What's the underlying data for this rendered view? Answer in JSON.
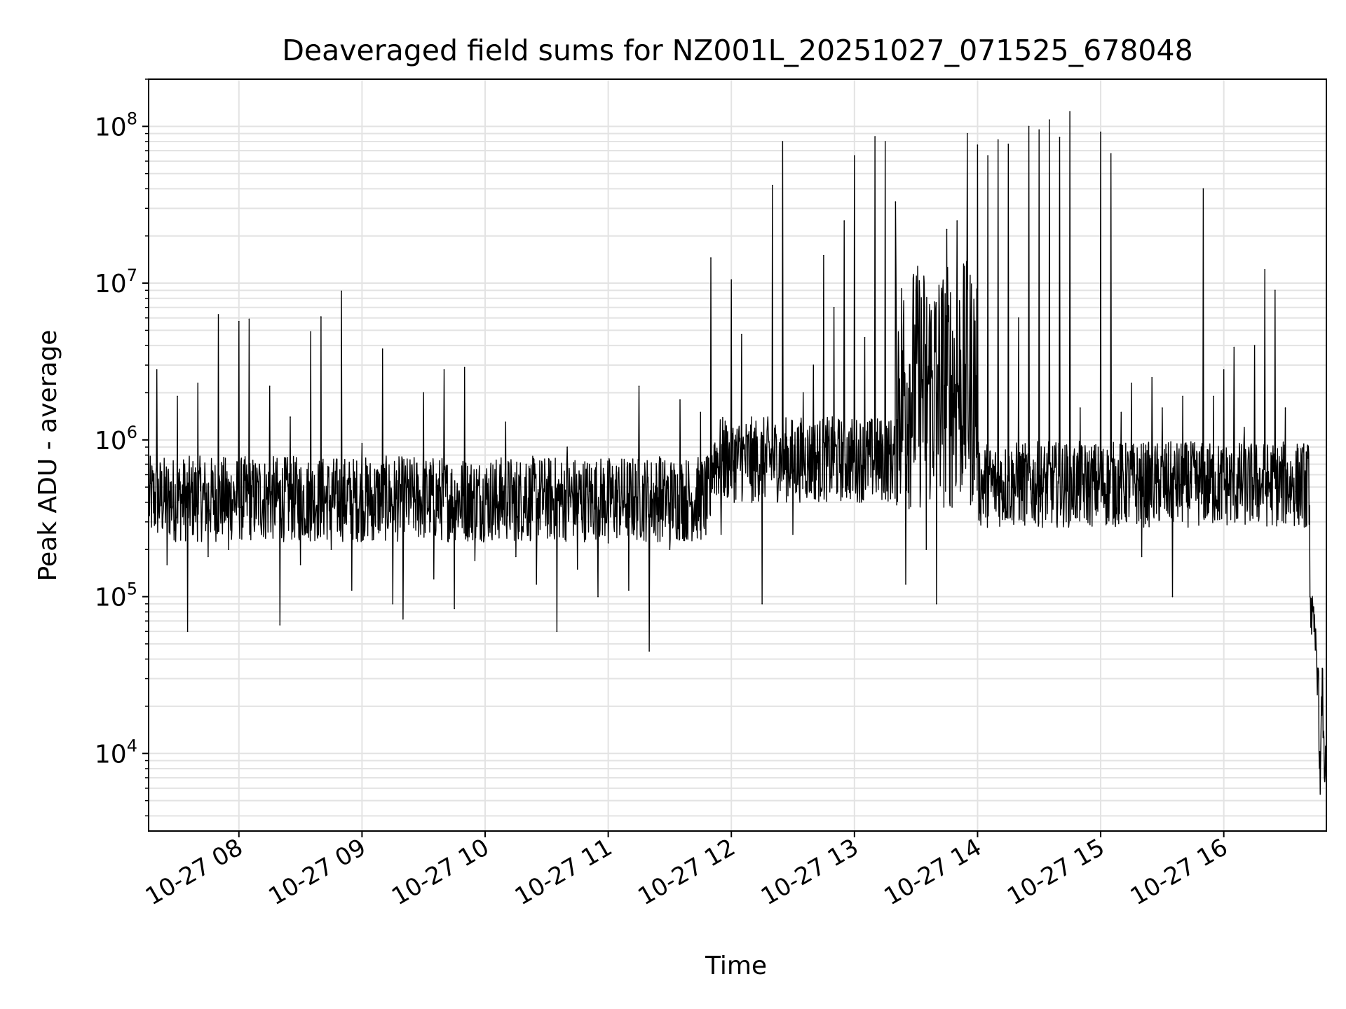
{
  "chart_data": {
    "type": "line",
    "title": "Deaveraged field sums for NZ001L_20251027_071525_678048",
    "xlabel": "Time",
    "ylabel": "Peak ADU - average",
    "yscale": "log",
    "ylim": [
      3200,
      200000000
    ],
    "xlim": [
      "2025-10-27 07:16",
      "2025-10-27 16:50"
    ],
    "grid": true,
    "line_color": "#000000",
    "x_tick_labels": [
      "10-27 08",
      "10-27 09",
      "10-27 10",
      "10-27 11",
      "10-27 12",
      "10-27 13",
      "10-27 14",
      "10-27 15",
      "10-27 16"
    ],
    "y_tick_labels": [
      {
        "base": "10",
        "exp": "4"
      },
      {
        "base": "10",
        "exp": "5"
      },
      {
        "base": "10",
        "exp": "6"
      },
      {
        "base": "10",
        "exp": "7"
      },
      {
        "base": "10",
        "exp": "8"
      }
    ],
    "series": [
      {
        "x": [
          "2025-10-27 07:16",
          "2025-10-27 07:20",
          "2025-10-27 07:25",
          "2025-10-27 07:30",
          "2025-10-27 07:35",
          "2025-10-27 07:40",
          "2025-10-27 07:45",
          "2025-10-27 07:50",
          "2025-10-27 07:55",
          "2025-10-27 08:00",
          "2025-10-27 08:05",
          "2025-10-27 08:10",
          "2025-10-27 08:15",
          "2025-10-27 08:20",
          "2025-10-27 08:25",
          "2025-10-27 08:30",
          "2025-10-27 08:35",
          "2025-10-27 08:40",
          "2025-10-27 08:45",
          "2025-10-27 08:50",
          "2025-10-27 08:55",
          "2025-10-27 09:00",
          "2025-10-27 09:05",
          "2025-10-27 09:10",
          "2025-10-27 09:15",
          "2025-10-27 09:20",
          "2025-10-27 09:25",
          "2025-10-27 09:30",
          "2025-10-27 09:35",
          "2025-10-27 09:40",
          "2025-10-27 09:45",
          "2025-10-27 09:50",
          "2025-10-27 09:55",
          "2025-10-27 10:00",
          "2025-10-27 10:05",
          "2025-10-27 10:10",
          "2025-10-27 10:15",
          "2025-10-27 10:20",
          "2025-10-27 10:25",
          "2025-10-27 10:30",
          "2025-10-27 10:35",
          "2025-10-27 10:40",
          "2025-10-27 10:45",
          "2025-10-27 10:50",
          "2025-10-27 10:55",
          "2025-10-27 11:00",
          "2025-10-27 11:05",
          "2025-10-27 11:10",
          "2025-10-27 11:15",
          "2025-10-27 11:20",
          "2025-10-27 11:25",
          "2025-10-27 11:30",
          "2025-10-27 11:35",
          "2025-10-27 11:40",
          "2025-10-27 11:45",
          "2025-10-27 11:50",
          "2025-10-27 11:55",
          "2025-10-27 12:00",
          "2025-10-27 12:05",
          "2025-10-27 12:10",
          "2025-10-27 12:15",
          "2025-10-27 12:20",
          "2025-10-27 12:25",
          "2025-10-27 12:30",
          "2025-10-27 12:35",
          "2025-10-27 12:40",
          "2025-10-27 12:45",
          "2025-10-27 12:50",
          "2025-10-27 12:55",
          "2025-10-27 13:00",
          "2025-10-27 13:05",
          "2025-10-27 13:10",
          "2025-10-27 13:15",
          "2025-10-27 13:20",
          "2025-10-27 13:25",
          "2025-10-27 13:30",
          "2025-10-27 13:35",
          "2025-10-27 13:40",
          "2025-10-27 13:45",
          "2025-10-27 13:50",
          "2025-10-27 13:55",
          "2025-10-27 14:00",
          "2025-10-27 14:05",
          "2025-10-27 14:10",
          "2025-10-27 14:15",
          "2025-10-27 14:20",
          "2025-10-27 14:25",
          "2025-10-27 14:30",
          "2025-10-27 14:35",
          "2025-10-27 14:40",
          "2025-10-27 14:45",
          "2025-10-27 14:50",
          "2025-10-27 14:55",
          "2025-10-27 15:00",
          "2025-10-27 15:05",
          "2025-10-27 15:10",
          "2025-10-27 15:15",
          "2025-10-27 15:20",
          "2025-10-27 15:25",
          "2025-10-27 15:30",
          "2025-10-27 15:35",
          "2025-10-27 15:40",
          "2025-10-27 15:45",
          "2025-10-27 15:50",
          "2025-10-27 15:55",
          "2025-10-27 16:00",
          "2025-10-27 16:05",
          "2025-10-27 16:10",
          "2025-10-27 16:15",
          "2025-10-27 16:20",
          "2025-10-27 16:25",
          "2025-10-27 16:30",
          "2025-10-27 16:35",
          "2025-10-27 16:40",
          "2025-10-27 16:42",
          "2025-10-27 16:44",
          "2025-10-27 16:46",
          "2025-10-27 16:47",
          "2025-10-27 16:48",
          "2025-10-27 16:49",
          "2025-10-27 16:50"
        ],
        "y": [
          480000,
          2800000,
          160000,
          1900000,
          60000,
          2300000,
          180000,
          6300000,
          200000,
          5700000,
          5900000,
          700000,
          2200000,
          66000,
          1400000,
          160000,
          4900000,
          6100000,
          200000,
          8900000,
          110000,
          950000,
          230000,
          3800000,
          90000,
          72000,
          500000,
          2000000,
          130000,
          2800000,
          84000,
          2900000,
          170000,
          600000,
          250000,
          1300000,
          180000,
          700000,
          120000,
          560000,
          60000,
          900000,
          150000,
          450000,
          100000,
          220000,
          620000,
          110000,
          2200000,
          45000,
          780000,
          200000,
          1800000,
          400000,
          1500000,
          14500000,
          250000,
          10500000,
          4700000,
          400000,
          90000,
          42000000,
          80000000,
          250000,
          2000000,
          3000000,
          15000000,
          7000000,
          25000000,
          65000000,
          4500000,
          86000000,
          80000000,
          33000000,
          120000,
          9000000,
          200000,
          90000,
          22000000,
          25000000,
          90000000,
          76000000,
          65000000,
          82000000,
          77000000,
          6000000,
          100000000,
          95000000,
          110000000,
          85000000,
          124000000,
          1600000,
          500000,
          92000000,
          67000000,
          1500000,
          2300000,
          180000,
          2500000,
          1600000,
          100000,
          1900000,
          950000,
          40000000,
          1900000,
          2800000,
          3900000,
          1200000,
          4000000,
          12200000,
          9000000,
          1600000,
          470000,
          280000,
          100000,
          60000,
          35000,
          5500,
          35000,
          7000,
          15000
        ]
      }
    ]
  }
}
